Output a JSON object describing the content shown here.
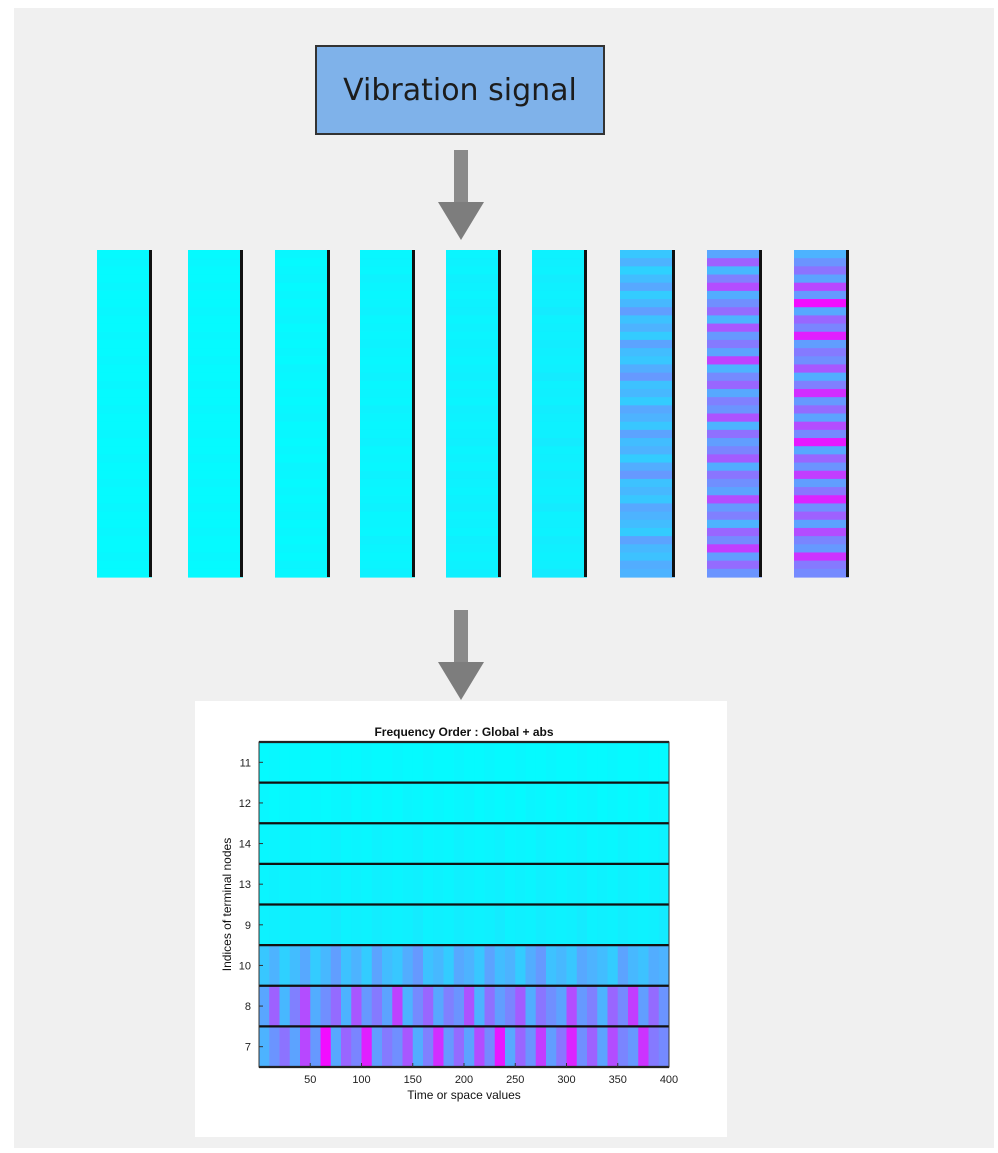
{
  "signal": {
    "label": "Vibration signal"
  },
  "icons": {
    "arrow_down": "arrow-down-icon"
  },
  "colors": {
    "background": "#f0f0f0",
    "box_fill": "#7fb2ea",
    "cyan": "#00ffff",
    "magenta": "#ff00ff",
    "arrow": "#888888"
  },
  "strips": [
    {
      "id": "node-11",
      "level": [
        0.02,
        0.03,
        0.02,
        0.02,
        0.03,
        0.02,
        0.02,
        0.03,
        0.02,
        0.02,
        0.03,
        0.02,
        0.02,
        0.03,
        0.02,
        0.02,
        0.03,
        0.02,
        0.02,
        0.03,
        0.02,
        0.02,
        0.03,
        0.02,
        0.02,
        0.03,
        0.02,
        0.02,
        0.03,
        0.02,
        0.02,
        0.03,
        0.02,
        0.02,
        0.03,
        0.02,
        0.02,
        0.03,
        0.02,
        0.02
      ]
    },
    {
      "id": "node-12",
      "level": [
        0.03,
        0.02,
        0.03,
        0.04,
        0.02,
        0.03,
        0.02,
        0.03,
        0.04,
        0.02,
        0.03,
        0.02,
        0.03,
        0.02,
        0.04,
        0.03,
        0.02,
        0.03,
        0.02,
        0.03,
        0.04,
        0.02,
        0.03,
        0.02,
        0.03,
        0.02,
        0.04,
        0.03,
        0.02,
        0.03,
        0.02,
        0.03,
        0.04,
        0.02,
        0.03,
        0.02,
        0.03,
        0.02,
        0.04,
        0.03
      ]
    },
    {
      "id": "node-14",
      "level": [
        0.03,
        0.04,
        0.03,
        0.05,
        0.04,
        0.03,
        0.04,
        0.05,
        0.03,
        0.04,
        0.03,
        0.05,
        0.04,
        0.03,
        0.04,
        0.05,
        0.03,
        0.04,
        0.03,
        0.05,
        0.04,
        0.03,
        0.04,
        0.05,
        0.03,
        0.04,
        0.03,
        0.05,
        0.04,
        0.03,
        0.04,
        0.05,
        0.03,
        0.04,
        0.03,
        0.05,
        0.04,
        0.03,
        0.04,
        0.05
      ]
    },
    {
      "id": "node-13",
      "level": [
        0.04,
        0.05,
        0.04,
        0.06,
        0.05,
        0.04,
        0.05,
        0.06,
        0.04,
        0.05,
        0.04,
        0.06,
        0.05,
        0.04,
        0.05,
        0.06,
        0.04,
        0.05,
        0.04,
        0.06,
        0.05,
        0.04,
        0.05,
        0.06,
        0.04,
        0.05,
        0.04,
        0.06,
        0.05,
        0.04,
        0.05,
        0.06,
        0.04,
        0.05,
        0.04,
        0.06,
        0.05,
        0.04,
        0.05,
        0.06
      ]
    },
    {
      "id": "node-9",
      "level": [
        0.05,
        0.06,
        0.05,
        0.07,
        0.06,
        0.05,
        0.06,
        0.08,
        0.05,
        0.06,
        0.05,
        0.07,
        0.06,
        0.05,
        0.06,
        0.08,
        0.05,
        0.06,
        0.05,
        0.07,
        0.06,
        0.05,
        0.06,
        0.08,
        0.05,
        0.06,
        0.05,
        0.07,
        0.06,
        0.05,
        0.06,
        0.08,
        0.05,
        0.06,
        0.05,
        0.07,
        0.06,
        0.05,
        0.06,
        0.08
      ]
    },
    {
      "id": "node-10",
      "level": [
        0.22,
        0.3,
        0.18,
        0.26,
        0.34,
        0.2,
        0.28,
        0.38,
        0.24,
        0.3,
        0.2,
        0.36,
        0.26,
        0.22,
        0.32,
        0.4,
        0.24,
        0.28,
        0.2,
        0.34,
        0.3,
        0.22,
        0.36,
        0.26,
        0.3,
        0.2,
        0.32,
        0.4,
        0.24,
        0.28,
        0.22,
        0.34,
        0.3,
        0.26,
        0.2,
        0.36,
        0.28,
        0.24,
        0.32,
        0.3
      ]
    },
    {
      "id": "node-8",
      "level": [
        0.35,
        0.62,
        0.28,
        0.5,
        0.7,
        0.32,
        0.44,
        0.58,
        0.3,
        0.66,
        0.4,
        0.52,
        0.36,
        0.74,
        0.3,
        0.46,
        0.6,
        0.34,
        0.5,
        0.42,
        0.68,
        0.3,
        0.56,
        0.38,
        0.48,
        0.64,
        0.32,
        0.54,
        0.44,
        0.36,
        0.7,
        0.4,
        0.5,
        0.3,
        0.6,
        0.46,
        0.76,
        0.38,
        0.58,
        0.42
      ]
    },
    {
      "id": "node-7",
      "level": [
        0.3,
        0.42,
        0.55,
        0.36,
        0.72,
        0.4,
        0.95,
        0.34,
        0.6,
        0.48,
        0.88,
        0.38,
        0.52,
        0.44,
        0.66,
        0.32,
        0.5,
        0.82,
        0.4,
        0.58,
        0.36,
        0.7,
        0.46,
        0.9,
        0.34,
        0.6,
        0.42,
        0.76,
        0.38,
        0.54,
        0.86,
        0.44,
        0.62,
        0.36,
        0.7,
        0.48,
        0.4,
        0.8,
        0.52,
        0.46
      ]
    }
  ],
  "chart_data": {
    "type": "heatmap",
    "title": "Frequency Order : Global + abs",
    "xlabel": "Time or space values",
    "ylabel": "Indices of terminal nodes",
    "xlim": [
      0,
      400
    ],
    "x_ticks": [
      "50",
      "100",
      "150",
      "200",
      "250",
      "300",
      "350",
      "400"
    ],
    "x_tick_values": [
      50,
      100,
      150,
      200,
      250,
      300,
      350,
      400
    ],
    "rows": [
      "11",
      "12",
      "14",
      "13",
      "9",
      "10",
      "8",
      "7"
    ],
    "colormap": "cool",
    "columns": 40,
    "values": [
      [
        0.02,
        0.03,
        0.02,
        0.02,
        0.03,
        0.02,
        0.02,
        0.03,
        0.02,
        0.02,
        0.03,
        0.02,
        0.02,
        0.03,
        0.02,
        0.02,
        0.03,
        0.02,
        0.02,
        0.03,
        0.02,
        0.02,
        0.03,
        0.02,
        0.02,
        0.03,
        0.02,
        0.02,
        0.03,
        0.02,
        0.02,
        0.03,
        0.02,
        0.02,
        0.03,
        0.02,
        0.02,
        0.03,
        0.02,
        0.02
      ],
      [
        0.03,
        0.02,
        0.03,
        0.04,
        0.02,
        0.03,
        0.02,
        0.03,
        0.04,
        0.02,
        0.03,
        0.02,
        0.03,
        0.02,
        0.04,
        0.03,
        0.02,
        0.03,
        0.02,
        0.03,
        0.04,
        0.02,
        0.03,
        0.02,
        0.03,
        0.02,
        0.04,
        0.03,
        0.02,
        0.03,
        0.02,
        0.03,
        0.04,
        0.02,
        0.03,
        0.02,
        0.03,
        0.02,
        0.04,
        0.03
      ],
      [
        0.03,
        0.04,
        0.03,
        0.05,
        0.04,
        0.03,
        0.04,
        0.05,
        0.03,
        0.04,
        0.03,
        0.05,
        0.04,
        0.03,
        0.04,
        0.05,
        0.03,
        0.04,
        0.03,
        0.05,
        0.04,
        0.03,
        0.04,
        0.05,
        0.03,
        0.04,
        0.03,
        0.05,
        0.04,
        0.03,
        0.04,
        0.05,
        0.03,
        0.04,
        0.03,
        0.05,
        0.04,
        0.03,
        0.04,
        0.05
      ],
      [
        0.04,
        0.05,
        0.04,
        0.06,
        0.05,
        0.04,
        0.05,
        0.06,
        0.04,
        0.05,
        0.04,
        0.06,
        0.05,
        0.04,
        0.05,
        0.06,
        0.04,
        0.05,
        0.04,
        0.06,
        0.05,
        0.04,
        0.05,
        0.06,
        0.04,
        0.05,
        0.04,
        0.06,
        0.05,
        0.04,
        0.05,
        0.06,
        0.04,
        0.05,
        0.04,
        0.06,
        0.05,
        0.04,
        0.05,
        0.06
      ],
      [
        0.05,
        0.06,
        0.05,
        0.07,
        0.06,
        0.05,
        0.06,
        0.08,
        0.05,
        0.06,
        0.05,
        0.07,
        0.06,
        0.05,
        0.06,
        0.08,
        0.05,
        0.06,
        0.05,
        0.07,
        0.06,
        0.05,
        0.06,
        0.08,
        0.05,
        0.06,
        0.05,
        0.07,
        0.06,
        0.05,
        0.06,
        0.08,
        0.05,
        0.06,
        0.05,
        0.07,
        0.06,
        0.05,
        0.06,
        0.08
      ],
      [
        0.22,
        0.3,
        0.18,
        0.26,
        0.34,
        0.2,
        0.28,
        0.38,
        0.24,
        0.3,
        0.2,
        0.36,
        0.26,
        0.22,
        0.32,
        0.4,
        0.24,
        0.28,
        0.2,
        0.34,
        0.3,
        0.22,
        0.36,
        0.26,
        0.3,
        0.2,
        0.32,
        0.4,
        0.24,
        0.28,
        0.22,
        0.34,
        0.3,
        0.26,
        0.2,
        0.36,
        0.28,
        0.24,
        0.32,
        0.3
      ],
      [
        0.35,
        0.62,
        0.28,
        0.5,
        0.7,
        0.32,
        0.44,
        0.58,
        0.3,
        0.66,
        0.4,
        0.52,
        0.36,
        0.74,
        0.3,
        0.46,
        0.6,
        0.34,
        0.5,
        0.42,
        0.68,
        0.3,
        0.56,
        0.38,
        0.48,
        0.64,
        0.32,
        0.54,
        0.44,
        0.36,
        0.7,
        0.4,
        0.5,
        0.3,
        0.6,
        0.46,
        0.76,
        0.38,
        0.58,
        0.42
      ],
      [
        0.3,
        0.42,
        0.55,
        0.36,
        0.72,
        0.4,
        0.95,
        0.34,
        0.6,
        0.48,
        0.88,
        0.38,
        0.52,
        0.44,
        0.66,
        0.32,
        0.5,
        0.82,
        0.4,
        0.58,
        0.36,
        0.7,
        0.46,
        0.9,
        0.34,
        0.6,
        0.42,
        0.76,
        0.38,
        0.54,
        0.86,
        0.44,
        0.62,
        0.36,
        0.7,
        0.48,
        0.4,
        0.8,
        0.52,
        0.46
      ]
    ]
  }
}
